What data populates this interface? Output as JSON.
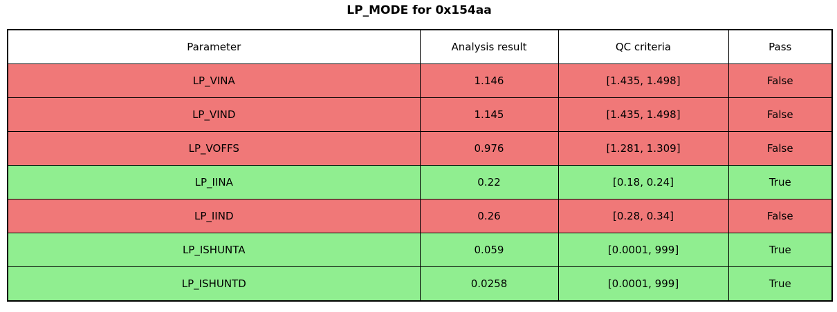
{
  "title": "LP_MODE for 0x154aa",
  "colors": {
    "fail_red": "#f07878",
    "pass_green": "#90ee90",
    "border": "#000000",
    "header_bg": "#ffffff"
  },
  "table": {
    "columns": [
      "Parameter",
      "Analysis result",
      "QC criteria",
      "Pass"
    ],
    "rows": [
      {
        "parameter": "LP_VINA",
        "result": "1.146",
        "criteria": "[1.435, 1.498]",
        "pass": "False"
      },
      {
        "parameter": "LP_VIND",
        "result": "1.145",
        "criteria": "[1.435, 1.498]",
        "pass": "False"
      },
      {
        "parameter": "LP_VOFFS",
        "result": "0.976",
        "criteria": "[1.281, 1.309]",
        "pass": "False"
      },
      {
        "parameter": "LP_IINA",
        "result": "0.22",
        "criteria": "[0.18, 0.24]",
        "pass": "True"
      },
      {
        "parameter": "LP_IIND",
        "result": "0.26",
        "criteria": "[0.28, 0.34]",
        "pass": "False"
      },
      {
        "parameter": "LP_ISHUNTA",
        "result": "0.059",
        "criteria": "[0.0001, 999]",
        "pass": "True"
      },
      {
        "parameter": "LP_ISHUNTD",
        "result": "0.0258",
        "criteria": "[0.0001, 999]",
        "pass": "True"
      }
    ]
  },
  "chart_data": {
    "type": "table",
    "title": "LP_MODE for 0x154aa",
    "columns": [
      "Parameter",
      "Analysis result",
      "QC criteria",
      "Pass"
    ],
    "rows": [
      [
        "LP_VINA",
        "1.146",
        "[1.435, 1.498]",
        "False"
      ],
      [
        "LP_VIND",
        "1.145",
        "[1.435, 1.498]",
        "False"
      ],
      [
        "LP_VOFFS",
        "0.976",
        "[1.281, 1.309]",
        "False"
      ],
      [
        "LP_IINA",
        "0.22",
        "[0.18, 0.24]",
        "True"
      ],
      [
        "LP_IIND",
        "0.26",
        "[0.28, 0.34]",
        "False"
      ],
      [
        "LP_ISHUNTA",
        "0.059",
        "[0.0001, 999]",
        "True"
      ],
      [
        "LP_ISHUNTD",
        "0.0258",
        "[0.0001, 999]",
        "True"
      ]
    ],
    "row_color_rule": "pass==True -> green, pass==False -> red",
    "layout": {
      "header_bg": "#ffffff",
      "grid": "on",
      "text_align": "center"
    }
  }
}
